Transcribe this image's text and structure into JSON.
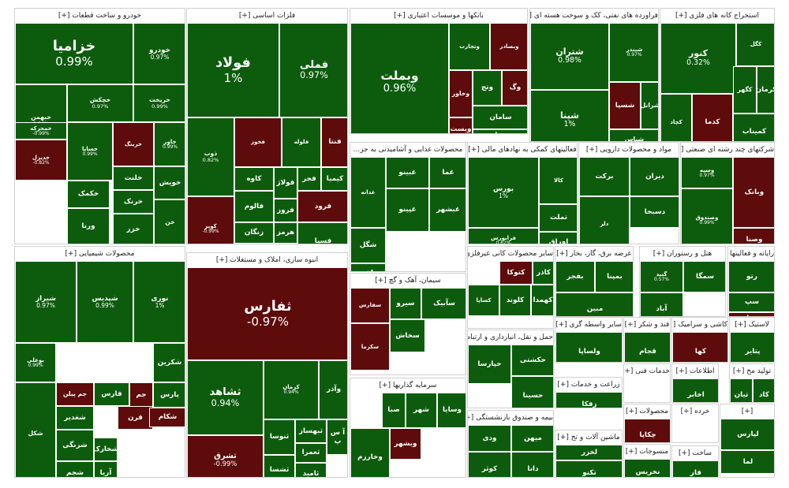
{
  "colors": {
    "positive": "#0d5c0d",
    "positive_alt": "#0b6d0b",
    "negative": "#5e0b0b",
    "negative_strong": "#8a0b0b",
    "border": "#ffffff"
  },
  "sectors": [
    {
      "label": "خودرو و ساخت قطعات [+]",
      "tiles": [
        {
          "s": "خزامیا",
          "p": "0.99%"
        },
        {
          "s": "خودرو",
          "p": "0.97%"
        },
        {
          "s": "خبهمن",
          "p": "0.96%"
        },
        {
          "s": "خچکش",
          "p": "0.97%"
        },
        {
          "s": "خریخت",
          "p": "0.99%"
        },
        {
          "s": "خمحرکه",
          "p": "-0.99%"
        },
        {
          "s": "خساپا",
          "p": "0.99%"
        },
        {
          "s": "خرینگ",
          "p": ""
        },
        {
          "s": "خاور",
          "p": "0.99%"
        },
        {
          "s": "خکمک",
          "p": ""
        },
        {
          "s": "خویش",
          "p": ""
        },
        {
          "s": "خلنت",
          "p": ""
        },
        {
          "s": "خرنک",
          "p": ""
        },
        {
          "s": "ورنا",
          "p": ""
        },
        {
          "s": "خزر",
          "p": ""
        },
        {
          "s": "خن",
          "p": ""
        },
        {
          "s": "خدیزل",
          "p": "-0.82%"
        }
      ]
    },
    {
      "label": "فلزات اساسی [+]",
      "tiles": [
        {
          "s": "فولاد",
          "p": "1%"
        },
        {
          "s": "فملی",
          "p": "0.97%"
        },
        {
          "s": "ذوب",
          "p": "0.82%"
        },
        {
          "s": "کویر",
          "p": "-0.99%"
        },
        {
          "s": "فخوز",
          "p": ""
        },
        {
          "s": "فلوله",
          "p": ""
        },
        {
          "s": "فنتا",
          "p": ""
        },
        {
          "s": "کاوه",
          "p": ""
        },
        {
          "s": "فولاژ",
          "p": ""
        },
        {
          "s": "فجر",
          "p": ""
        },
        {
          "s": "کیمیا",
          "p": ""
        },
        {
          "s": "فالوم",
          "p": ""
        },
        {
          "s": "فرود",
          "p": ""
        },
        {
          "s": "فروز",
          "p": ""
        },
        {
          "s": "زنگان",
          "p": ""
        },
        {
          "s": "هرمز",
          "p": ""
        },
        {
          "s": "فسازان",
          "p": ""
        },
        {
          "s": "فسپا",
          "p": ""
        }
      ]
    },
    {
      "label": "بانکها و موسسات اعتباری [+]",
      "tiles": [
        {
          "s": "وبملت",
          "p": "0.96%"
        },
        {
          "s": "وتجارت",
          "p": ""
        },
        {
          "s": "وبصادر",
          "p": ""
        },
        {
          "s": "وخاور",
          "p": ""
        },
        {
          "s": "وتج",
          "p": ""
        },
        {
          "s": "وگ",
          "p": ""
        },
        {
          "s": "سامان",
          "p": ""
        },
        {
          "s": "ویست",
          "p": ""
        },
        {
          "s": "ویسار",
          "p": ""
        }
      ]
    },
    {
      "label": "فراورده های نفتی، کک و سوخت هسته ای [+]",
      "tiles": [
        {
          "s": "شتران",
          "p": "0.98%"
        },
        {
          "s": "شبندر",
          "p": "0.97%"
        },
        {
          "s": "شپنا",
          "p": "1%"
        },
        {
          "s": "شسپا",
          "p": ""
        },
        {
          "s": "شرانل",
          "p": ""
        },
        {
          "s": "شپاس",
          "p": ""
        }
      ]
    },
    {
      "label": "استخراج کانه های فلزی [+]",
      "tiles": [
        {
          "s": "کنور",
          "p": "0.32%"
        },
        {
          "s": "کگل",
          "p": ""
        },
        {
          "s": "کچاد",
          "p": ""
        },
        {
          "s": "کدما",
          "p": ""
        },
        {
          "s": "کگهر",
          "p": ""
        },
        {
          "s": "کرمان",
          "p": ""
        },
        {
          "s": "کمیناب",
          "p": ""
        }
      ]
    },
    {
      "label": "محصولات غذایی و آشامیدنی به جز...",
      "tiles": [
        {
          "s": "غدانه",
          "p": ""
        },
        {
          "s": "غبینو",
          "p": ""
        },
        {
          "s": "غما",
          "p": ""
        },
        {
          "s": "شگل",
          "p": ""
        },
        {
          "s": "غزر",
          "p": ""
        },
        {
          "s": "غپینو",
          "p": ""
        },
        {
          "s": "غبشهر",
          "p": ""
        }
      ]
    },
    {
      "label": "فعالیتهای کمکی به نهادهای مالی [+]",
      "tiles": [
        {
          "s": "بورس",
          "p": "1%"
        },
        {
          "s": "کالا",
          "p": ""
        },
        {
          "s": "تملت",
          "p": ""
        },
        {
          "s": "فرابورس",
          "p": "0.62%"
        },
        {
          "s": "اوراق",
          "p": ""
        }
      ]
    },
    {
      "label": "مواد و محصولات دارویی [+]",
      "tiles": [
        {
          "s": "برکت",
          "p": ""
        },
        {
          "s": "دیران",
          "p": ""
        },
        {
          "s": "دسبحا",
          "p": ""
        },
        {
          "s": "دلر",
          "p": ""
        },
        {
          "s": "دعبید",
          "p": ""
        }
      ]
    },
    {
      "label": "شرکتهای چند رشته ای صنعتی [+]",
      "tiles": [
        {
          "s": "وبانک",
          "p": ""
        },
        {
          "s": "وصندوق",
          "p": "0.99%"
        },
        {
          "s": "وسپه",
          "p": "0.97%"
        },
        {
          "s": "وصنا",
          "p": ""
        }
      ]
    },
    {
      "label": "محصولات شیمیایی [+]",
      "tiles": [
        {
          "s": "شیراز",
          "p": "0.97%"
        },
        {
          "s": "شپدیس",
          "p": "0.99%"
        },
        {
          "s": "نوری",
          "p": "1%"
        },
        {
          "s": "بوعلی",
          "p": "0.99%"
        },
        {
          "s": "شکرین",
          "p": ""
        },
        {
          "s": "جم پیلن",
          "p": ""
        },
        {
          "s": "پارس",
          "p": ""
        },
        {
          "s": "جم",
          "p": ""
        },
        {
          "s": "فارس",
          "p": ""
        },
        {
          "s": "شغدیر",
          "p": ""
        },
        {
          "s": "قرن",
          "p": ""
        },
        {
          "s": "شکام",
          "p": ""
        },
        {
          "s": "شرنگی",
          "p": ""
        },
        {
          "s": "شجم",
          "p": ""
        },
        {
          "s": "آریا",
          "p": ""
        },
        {
          "s": "شخارک",
          "p": ""
        },
        {
          "s": "شکل",
          "p": ""
        }
      ]
    },
    {
      "label": "انبوه سازی، املاک و مستغلات [+]",
      "tiles": [
        {
          "s": "ثفارس",
          "p": "-0.97%"
        },
        {
          "s": "ثشاهد",
          "p": "0.94%"
        },
        {
          "s": "ثشرق",
          "p": "-0.99%"
        },
        {
          "s": "کرمان",
          "p": "0.94%"
        },
        {
          "s": "وآذر",
          "p": ""
        },
        {
          "s": "ثنوسا",
          "p": ""
        },
        {
          "s": "ثبهساز",
          "p": ""
        },
        {
          "s": "آ س پ",
          "p": ""
        },
        {
          "s": "ثعمرا",
          "p": ""
        },
        {
          "s": "ثشسا",
          "p": ""
        },
        {
          "s": "ثامید",
          "p": ""
        }
      ]
    },
    {
      "label": "سیمان، آهک و گچ [+]",
      "tiles": [
        {
          "s": "سآبیک",
          "p": ""
        },
        {
          "s": "سیرو",
          "p": ""
        },
        {
          "s": "سفارس",
          "p": ""
        },
        {
          "s": "سخاش",
          "p": ""
        },
        {
          "s": "سکرما",
          "p": ""
        }
      ]
    },
    {
      "label": "سرمایه گذاریها [+]",
      "tiles": [
        {
          "s": "وسایا",
          "p": ""
        },
        {
          "s": "شهر",
          "p": ""
        },
        {
          "s": "صبا",
          "p": ""
        },
        {
          "s": "وخارزم",
          "p": ""
        },
        {
          "s": "وبشهر",
          "p": ""
        }
      ]
    },
    {
      "label": "سایر محصولات کانی غیرفلزی [+]",
      "tiles": [
        {
          "s": "کتوکا",
          "p": ""
        },
        {
          "s": "کاذر",
          "p": ""
        },
        {
          "s": "کساپا",
          "p": ""
        },
        {
          "s": "کلوند",
          "p": ""
        },
        {
          "s": "کهمدا",
          "p": ""
        }
      ]
    },
    {
      "label": "عرضه برق، گاز، بخار [+]",
      "tiles": [
        {
          "s": "بمپنا",
          "p": ""
        },
        {
          "s": "بفجر",
          "p": ""
        },
        {
          "s": "مبین",
          "p": ""
        }
      ]
    },
    {
      "label": "هتل و رستوران [+]",
      "tiles": [
        {
          "s": "سمگا",
          "p": ""
        },
        {
          "s": "آباد",
          "p": ""
        },
        {
          "s": "گنبد",
          "p": "0.57%"
        }
      ]
    },
    {
      "label": "رایانه و فعالیتها [+]",
      "tiles": [
        {
          "s": "رتو",
          "p": ""
        },
        {
          "s": "سپ",
          "p": ""
        },
        {
          "s": "مدا",
          "p": ""
        }
      ]
    },
    {
      "label": "حمل و نقل، انبارداری و ارتباطات [+]",
      "tiles": [
        {
          "s": "حکشتی",
          "p": ""
        },
        {
          "s": "حپارسا",
          "p": ""
        },
        {
          "s": "حسینا",
          "p": ""
        }
      ]
    },
    {
      "label": "سایر واسطه گری [+]",
      "tiles": [
        {
          "s": "ولساپا",
          "p": ""
        }
      ]
    },
    {
      "label": "قند و شکر [+]",
      "tiles": [
        {
          "s": "قجام",
          "p": ""
        }
      ]
    },
    {
      "label": "کاشی و سرامیک [+]",
      "tiles": [
        {
          "s": "کها",
          "p": ""
        }
      ]
    },
    {
      "label": "لاستیک [+]",
      "tiles": [
        {
          "s": "پتایر",
          "p": ""
        }
      ]
    },
    {
      "label": "زراعت و خدمات [+]",
      "tiles": [
        {
          "s": "زفکا",
          "p": ""
        }
      ]
    },
    {
      "label": "خدمات فنی [+]",
      "tiles": []
    },
    {
      "label": "اطلاعات [+]",
      "tiles": [
        {
          "s": "اخابر",
          "p": ""
        }
      ]
    },
    {
      "label": "تولید مح [+]",
      "tiles": [
        {
          "s": "تیان",
          "p": ""
        },
        {
          "s": "کاد",
          "p": ""
        }
      ]
    },
    {
      "label": "بیمه و صندوق بازنشستگی [+]",
      "tiles": [
        {
          "s": "ودی",
          "p": ""
        },
        {
          "s": "میهن",
          "p": ""
        },
        {
          "s": "کوثر",
          "p": ""
        },
        {
          "s": "دانا",
          "p": ""
        }
      ]
    },
    {
      "label": "ماشین آلات و تج [+]",
      "tiles": [
        {
          "s": "لخزر",
          "p": ""
        },
        {
          "s": "تکنو",
          "p": ""
        }
      ]
    },
    {
      "label": "محصولات [+]",
      "tiles": [
        {
          "s": "چکاپا",
          "p": ""
        }
      ]
    },
    {
      "label": "منسوجات [+]",
      "tiles": [
        {
          "s": "نخریس",
          "p": ""
        }
      ]
    },
    {
      "label": "خرده [+]",
      "tiles": []
    },
    {
      "label": "ساخت [+]",
      "tiles": [
        {
          "s": "فار",
          "p": ""
        }
      ]
    },
    {
      "label": "[+]",
      "tiles": [
        {
          "s": "لپارس",
          "p": ""
        },
        {
          "s": "لما",
          "p": ""
        }
      ]
    }
  ]
}
